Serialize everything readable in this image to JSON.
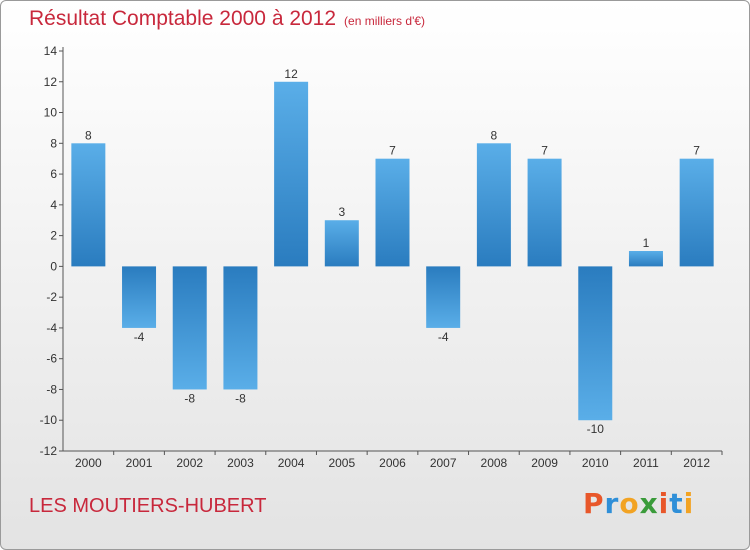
{
  "chart_data": {
    "type": "bar",
    "title": "Résultat Comptable 2000 à 2012",
    "unit": "(en milliers d'€)",
    "categories": [
      "2000",
      "2001",
      "2002",
      "2003",
      "2004",
      "2005",
      "2006",
      "2007",
      "2008",
      "2009",
      "2010",
      "2011",
      "2012"
    ],
    "values": [
      8,
      -4,
      -8,
      -8,
      12,
      3,
      7,
      -4,
      8,
      7,
      -10,
      1,
      7
    ],
    "ylim": [
      -12,
      14
    ],
    "yticks": [
      14,
      12,
      10,
      8,
      6,
      4,
      2,
      0,
      -2,
      -4,
      -6,
      -8,
      -10,
      -12
    ],
    "xlabel": "",
    "ylabel": "",
    "grid": false,
    "bar_color": "#3f97d9"
  },
  "footer": {
    "commune": "LES MOUTIERS-HUBERT",
    "logo": "Proxiti"
  },
  "colors": {
    "title": "#c8283c",
    "logo_letters": [
      "#e8572a",
      "#2f8fd8",
      "#f2a323",
      "#3a9b3a",
      "#e8572a",
      "#2f8fd8",
      "#f2a323"
    ]
  }
}
